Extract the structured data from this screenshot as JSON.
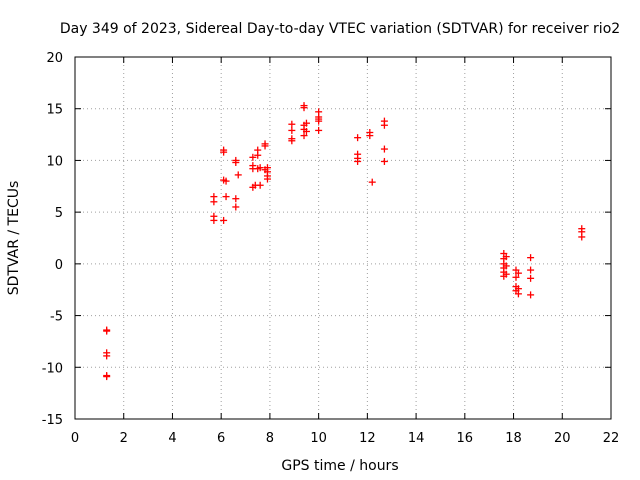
{
  "chart_data": {
    "type": "scatter",
    "title": "Day 349 of 2023, Sidereal Day-to-day VTEC variation (SDTVAR) for receiver rio2",
    "xlabel": "GPS time / hours",
    "ylabel": "SDTVAR / TECUs",
    "xlim": [
      0,
      22
    ],
    "ylim": [
      -15,
      20
    ],
    "xticks": [
      0,
      2,
      4,
      6,
      8,
      10,
      12,
      14,
      16,
      18,
      20,
      22
    ],
    "yticks": [
      -15,
      -10,
      -5,
      0,
      5,
      10,
      15,
      20
    ],
    "grid": true,
    "marker": "+",
    "color": "#ff0000",
    "series": [
      {
        "name": "rio2",
        "x": [
          1.3,
          1.3,
          1.3,
          1.3,
          1.3,
          1.3,
          5.7,
          5.7,
          5.7,
          5.7,
          6.1,
          6.1,
          6.1,
          6.1,
          6.2,
          6.2,
          6.6,
          6.6,
          6.6,
          6.6,
          6.7,
          7.3,
          7.3,
          7.3,
          7.3,
          7.4,
          7.5,
          7.5,
          7.5,
          7.6,
          7.6,
          7.8,
          7.8,
          7.8,
          7.9,
          7.9,
          7.9,
          7.9,
          8.9,
          8.9,
          8.9,
          8.9,
          9.4,
          9.4,
          9.4,
          9.4,
          9.4,
          9.5,
          9.5,
          10.0,
          10.0,
          10.0,
          10.0,
          10.0,
          11.6,
          11.6,
          11.6,
          11.6,
          12.1,
          12.1,
          12.2,
          12.7,
          12.7,
          12.7,
          12.7,
          17.6,
          17.6,
          17.6,
          17.6,
          17.6,
          17.6,
          17.7,
          17.7,
          17.7,
          18.1,
          18.1,
          18.1,
          18.1,
          18.2,
          18.2,
          18.2,
          18.7,
          18.7,
          18.7,
          18.7,
          20.8,
          20.8,
          20.8
        ],
        "y": [
          -6.4,
          -6.5,
          -8.6,
          -8.9,
          -10.8,
          -10.9,
          6.5,
          6.0,
          4.6,
          4.2,
          11.0,
          10.8,
          8.1,
          4.2,
          8.0,
          6.5,
          10.0,
          9.8,
          6.3,
          5.5,
          8.6,
          10.3,
          9.5,
          9.2,
          7.4,
          7.6,
          11.0,
          10.5,
          9.2,
          7.6,
          9.3,
          11.6,
          11.4,
          9.1,
          9.3,
          8.9,
          8.5,
          8.2,
          13.5,
          12.9,
          12.1,
          11.9,
          15.3,
          15.1,
          13.4,
          13.0,
          12.4,
          13.6,
          12.8,
          14.7,
          14.2,
          14.0,
          13.8,
          12.9,
          12.2,
          10.6,
          10.2,
          9.9,
          12.7,
          12.4,
          7.9,
          13.8,
          13.4,
          11.1,
          9.9,
          1.0,
          0.5,
          0.0,
          -0.4,
          -0.8,
          -1.2,
          0.7,
          -0.2,
          -1.0,
          -0.6,
          -1.3,
          -2.2,
          -2.6,
          -0.9,
          -2.4,
          -2.9,
          0.6,
          -0.6,
          -1.4,
          -3.0,
          3.4,
          3.1,
          2.6
        ]
      }
    ]
  }
}
